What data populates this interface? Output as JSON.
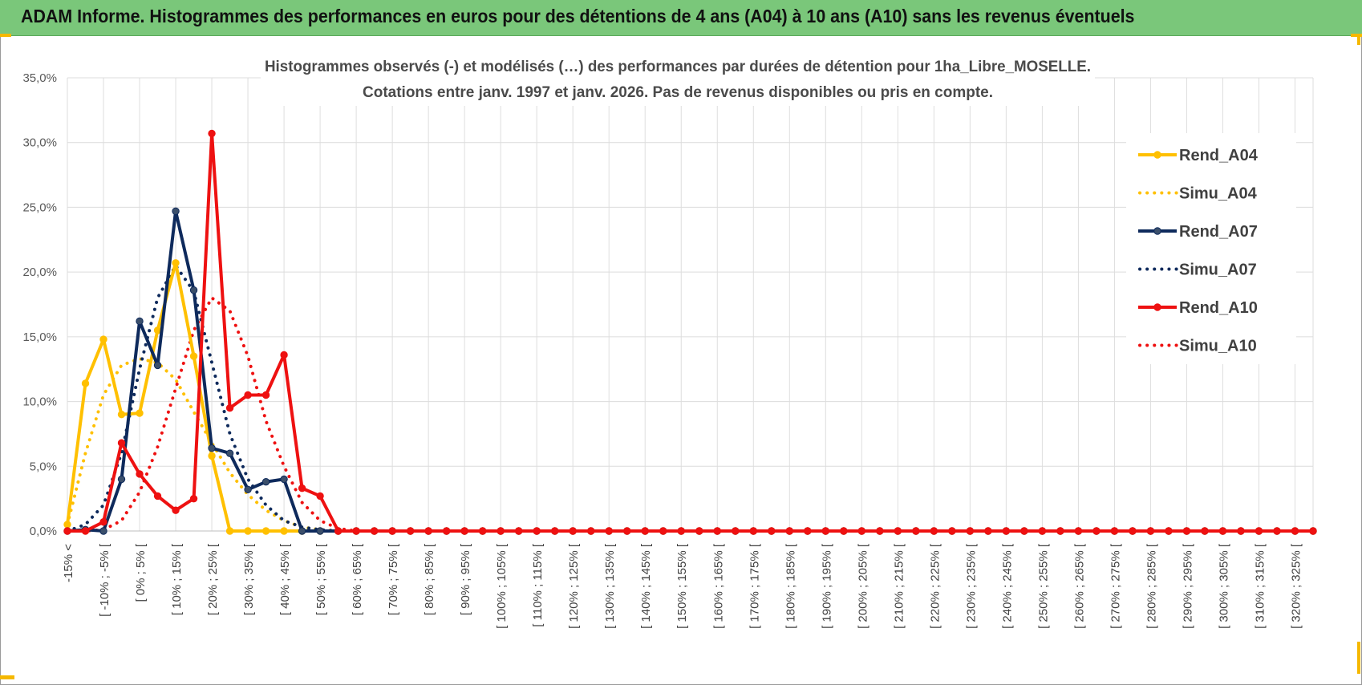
{
  "header": {
    "title": "ADAM Informe. Histogrammes des performances en euros pour des détentions de 4 ans (A04) à 10 ans (A10) sans les revenus éventuels"
  },
  "colors": {
    "banner": "#7ac77a",
    "rend_a04": "#ffc000",
    "simu_a04": "#ffc000",
    "rend_a07": "#0e2a5c",
    "simu_a07": "#0e2a5c",
    "rend_a10": "#ee1111",
    "simu_a10": "#ee1111"
  },
  "chart_data": {
    "type": "line",
    "title_lines": [
      "Histogrammes observés (-) et modélisés (…) des performances par durées de détention pour 1ha_Libre_MOSELLE.",
      "Cotations entre janv. 1997 et janv. 2026. Pas de revenus disponibles ou pris en compte."
    ],
    "y_ticks": [
      "0,0%",
      "5,0%",
      "10,0%",
      "15,0%",
      "20,0%",
      "25,0%",
      "30,0%",
      "35,0%"
    ],
    "ylim": [
      0,
      35
    ],
    "grid": true,
    "legend_position": "right",
    "x_labels": [
      "-15% <",
      "[ -10% ; -5% [",
      "[ 0% ; 5% [",
      "[ 10% ; 15% [",
      "[ 20% ; 25% [",
      "[ 30% ; 35% [",
      "[ 40% ; 45% [",
      "[ 50% ; 55% [",
      "[ 60% ; 65% [",
      "[ 70% ; 75% [",
      "[ 80% ; 85% [",
      "[ 90% ; 95% [",
      "[ 100% ; 105% [",
      "[ 110% ; 115% [",
      "[ 120% ; 125% [",
      "[ 130% ; 135% [",
      "[ 140% ; 145% [",
      "[ 150% ; 155% [",
      "[ 160% ; 165% [",
      "[ 170% ; 175% [",
      "[ 180% ; 185% [",
      "[ 190% ; 195% [",
      "[ 200% ; 205% [",
      "[ 210% ; 215% [",
      "[ 220% ; 225% [",
      "[ 230% ; 235% [",
      "[ 240% ; 245% [",
      "[ 250% ; 255% [",
      "[ 260% ; 265% [",
      "[ 270% ; 275% [",
      "[ 280% ; 285% [",
      "[ 290% ; 295% [",
      "[ 300% ; 305% [",
      "[ 310% ; 315% [",
      "[ 320% ; 325% ["
    ],
    "x_count": 70,
    "series": [
      {
        "name": "Rend_A04",
        "style": "solid",
        "color": "#ffc000",
        "markers": true,
        "values": [
          0.5,
          11.4,
          14.8,
          9.0,
          9.1,
          15.5,
          20.7,
          13.5,
          5.8,
          0.0,
          0.0,
          0.0,
          0.0
        ]
      },
      {
        "name": "Simu_A04",
        "style": "dotted",
        "color": "#ffc000",
        "markers": false,
        "values": [
          0.5,
          6.0,
          10.5,
          12.8,
          13.3,
          13.0,
          11.7,
          9.2,
          6.8,
          4.5,
          2.8,
          1.6,
          0.8,
          0.3,
          0.1,
          0.0
        ]
      },
      {
        "name": "Rend_A07",
        "style": "solid",
        "color": "#0e2a5c",
        "markers": true,
        "values": [
          0.0,
          0.1,
          0.0,
          4.0,
          16.2,
          12.8,
          24.7,
          18.6,
          6.4,
          6.0,
          3.2,
          3.8,
          4.0,
          0.0,
          0.0,
          0.0
        ]
      },
      {
        "name": "Simu_A07",
        "style": "dotted",
        "color": "#0e2a5c",
        "markers": false,
        "values": [
          0.0,
          0.5,
          2.0,
          6.0,
          12.5,
          18.0,
          20.5,
          18.5,
          13.0,
          7.5,
          4.0,
          2.0,
          0.8,
          0.3,
          0.1,
          0.0
        ]
      },
      {
        "name": "Rend_A10",
        "style": "solid",
        "color": "#ee1111",
        "markers": true,
        "values": [
          0.0,
          0.0,
          0.7,
          6.8,
          4.4,
          2.7,
          1.6,
          2.5,
          30.7,
          9.5,
          10.5,
          10.5,
          13.6,
          3.3,
          2.7,
          0.0
        ]
      },
      {
        "name": "Simu_A10",
        "style": "dotted",
        "color": "#ee1111",
        "markers": false,
        "values": [
          0.0,
          0.0,
          0.1,
          0.8,
          3.0,
          6.5,
          11.0,
          15.5,
          18.0,
          17.0,
          13.5,
          8.5,
          5.0,
          2.2,
          0.8,
          0.2,
          0.0
        ]
      }
    ]
  }
}
